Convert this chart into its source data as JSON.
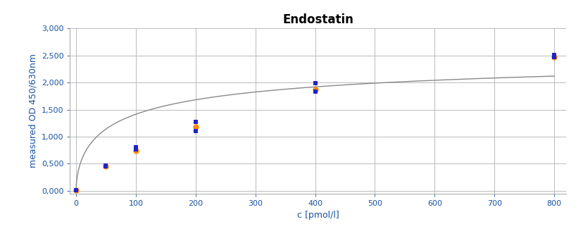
{
  "title": "Endostatin",
  "xlabel": "c [pmol/l]",
  "ylabel": "measured OD 450/630nm",
  "background_color": "#ffffff",
  "plot_bg_color": "#ffffff",
  "grid_color": "#b0b0b0",
  "curve_color": "#888888",
  "xlim": [
    -10,
    820
  ],
  "ylim": [
    -0.05,
    3.0
  ],
  "xticks": [
    0,
    100,
    200,
    300,
    400,
    500,
    600,
    700,
    800
  ],
  "yticks": [
    0.0,
    0.5,
    1.0,
    1.5,
    2.0,
    2.5,
    3.0
  ],
  "ytick_labels": [
    "0,000",
    "0,500",
    "1,000",
    "1,500",
    "2,000",
    "2,500",
    "3,000"
  ],
  "data_points_x": [
    0,
    50,
    100,
    200,
    400,
    800
  ],
  "data_blue_y": [
    [
      0.01,
      0.01
    ],
    [
      0.45,
      0.46
    ],
    [
      0.76,
      0.8
    ],
    [
      1.27,
      1.1
    ],
    [
      1.99,
      1.83
    ],
    [
      2.51,
      2.47
    ]
  ],
  "data_orange_y": [
    [
      0.005
    ],
    [
      0.45
    ],
    [
      0.74
    ],
    [
      1.18
    ],
    [
      1.87
    ],
    [
      2.47
    ]
  ],
  "title_fontsize": 12,
  "label_fontsize": 9,
  "tick_fontsize": 8,
  "title_color": "#000000",
  "label_color": "#1a52a0",
  "tick_color": "#1a52a0",
  "marker_blue": "s",
  "marker_orange": "o",
  "color_blue": "#2222cc",
  "color_orange": "#ff8c00",
  "marker_size_blue": 5,
  "marker_size_orange": 6
}
